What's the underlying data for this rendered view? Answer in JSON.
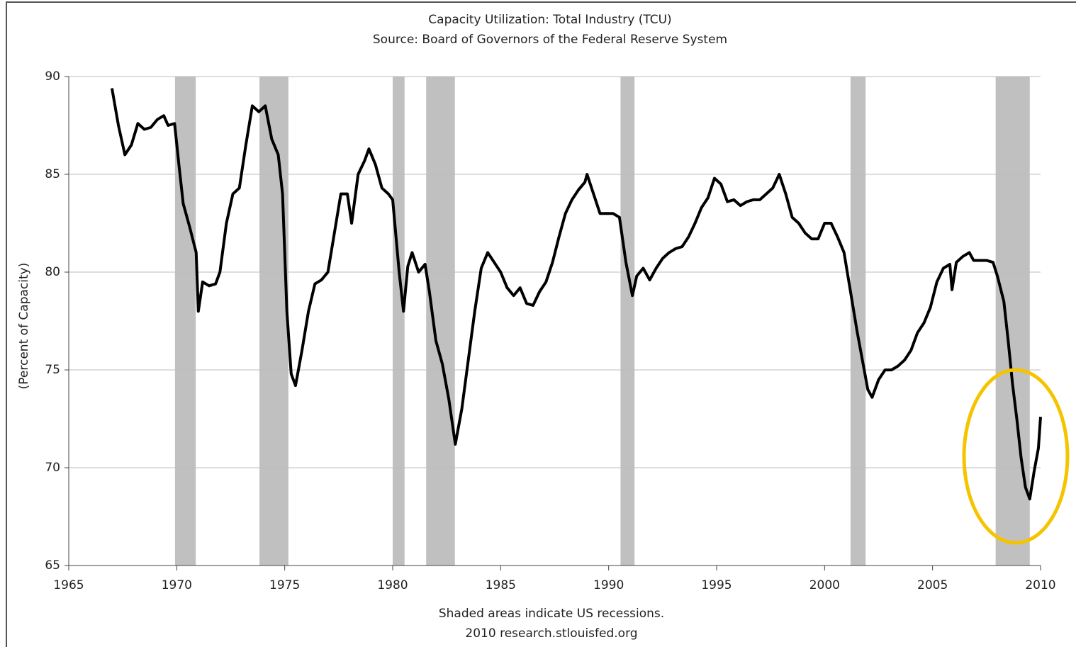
{
  "chart_data": {
    "type": "line",
    "title": "Capacity Utilization: Total Industry (TCU)",
    "subtitle": "Source: Board of Governors of the Federal Reserve System",
    "y_label": "(Percent of Capacity)",
    "footer": [
      "Shaded areas indicate US recessions.",
      "2010 research.stlouisfed.org"
    ],
    "xlim": [
      1965,
      2010
    ],
    "xticks": [
      1965,
      1970,
      1975,
      1980,
      1985,
      1990,
      1995,
      2000,
      2005,
      2010
    ],
    "ylim": [
      65,
      90
    ],
    "yticks": [
      65,
      70,
      75,
      80,
      85,
      90
    ],
    "grid": true,
    "recession_color": "#c0c0c0",
    "recessions": [
      [
        1969.92,
        1970.88
      ],
      [
        1973.83,
        1975.17
      ],
      [
        1980.0,
        1980.55
      ],
      [
        1981.55,
        1982.88
      ],
      [
        1990.55,
        1991.2
      ],
      [
        2001.2,
        2001.9
      ],
      [
        2007.92,
        2009.5
      ]
    ],
    "x": [
      1967.0,
      1967.3,
      1967.6,
      1967.9,
      1968.2,
      1968.5,
      1968.8,
      1969.1,
      1969.4,
      1969.6,
      1969.9,
      1970.1,
      1970.3,
      1970.6,
      1970.9,
      1971.0,
      1971.2,
      1971.5,
      1971.8,
      1972.0,
      1972.3,
      1972.6,
      1972.9,
      1973.2,
      1973.5,
      1973.8,
      1974.1,
      1974.4,
      1974.7,
      1974.9,
      1975.1,
      1975.3,
      1975.5,
      1975.8,
      1976.1,
      1976.4,
      1976.7,
      1977.0,
      1977.3,
      1977.6,
      1977.9,
      1978.1,
      1978.4,
      1978.7,
      1978.9,
      1979.2,
      1979.5,
      1979.8,
      1980.0,
      1980.3,
      1980.5,
      1980.7,
      1980.9,
      1981.2,
      1981.5,
      1981.7,
      1982.0,
      1982.3,
      1982.6,
      1982.9,
      1983.2,
      1983.5,
      1983.8,
      1984.1,
      1984.4,
      1984.7,
      1985.0,
      1985.3,
      1985.6,
      1985.9,
      1986.2,
      1986.5,
      1986.8,
      1987.1,
      1987.4,
      1987.7,
      1988.0,
      1988.3,
      1988.6,
      1988.9,
      1989.0,
      1989.3,
      1989.6,
      1989.9,
      1990.2,
      1990.5,
      1990.8,
      1991.1,
      1991.3,
      1991.6,
      1991.9,
      1992.2,
      1992.5,
      1992.8,
      1993.1,
      1993.4,
      1993.7,
      1994.0,
      1994.3,
      1994.6,
      1994.9,
      1995.2,
      1995.5,
      1995.8,
      1996.1,
      1996.4,
      1996.7,
      1997.0,
      1997.3,
      1997.6,
      1997.9,
      1998.2,
      1998.5,
      1998.8,
      1999.1,
      1999.4,
      1999.7,
      2000.0,
      2000.3,
      2000.6,
      2000.9,
      2001.2,
      2001.5,
      2001.8,
      2002.0,
      2002.2,
      2002.5,
      2002.8,
      2003.1,
      2003.4,
      2003.7,
      2004.0,
      2004.3,
      2004.6,
      2004.9,
      2005.2,
      2005.5,
      2005.8,
      2005.9,
      2006.1,
      2006.4,
      2006.7,
      2006.9,
      2007.2,
      2007.5,
      2007.8,
      2008.0,
      2008.3,
      2008.5,
      2008.7,
      2008.9,
      2009.1,
      2009.3,
      2009.5,
      2009.7,
      2009.9,
      2010.0
    ],
    "series": [
      {
        "name": "TCU",
        "color": "#000000",
        "values": [
          89.4,
          87.5,
          86.0,
          86.5,
          87.6,
          87.3,
          87.4,
          87.8,
          88.0,
          87.5,
          87.6,
          85.5,
          83.5,
          82.3,
          81.0,
          78.0,
          79.5,
          79.3,
          79.4,
          80.0,
          82.5,
          84.0,
          84.3,
          86.5,
          88.5,
          88.2,
          88.5,
          86.8,
          86.0,
          84.0,
          78.0,
          74.8,
          74.2,
          76.0,
          78.0,
          79.4,
          79.6,
          80.0,
          82.0,
          84.0,
          84.0,
          82.5,
          85.0,
          85.7,
          86.3,
          85.5,
          84.3,
          84.0,
          83.7,
          80.0,
          78.0,
          80.3,
          81.0,
          80.0,
          80.4,
          79.0,
          76.5,
          75.3,
          73.5,
          71.2,
          73.0,
          75.5,
          78.0,
          80.2,
          81.0,
          80.5,
          80.0,
          79.2,
          78.8,
          79.2,
          78.4,
          78.3,
          79.0,
          79.5,
          80.5,
          81.8,
          83.0,
          83.7,
          84.2,
          84.6,
          85.0,
          84.0,
          83.0,
          83.0,
          83.0,
          82.8,
          80.5,
          78.8,
          79.8,
          80.2,
          79.6,
          80.2,
          80.7,
          81.0,
          81.2,
          81.3,
          81.8,
          82.5,
          83.3,
          83.8,
          84.8,
          84.5,
          83.6,
          83.7,
          83.4,
          83.6,
          83.7,
          83.7,
          84.0,
          84.3,
          85.0,
          84.0,
          82.8,
          82.5,
          82.0,
          81.7,
          81.7,
          82.5,
          82.5,
          81.8,
          81.0,
          79.0,
          77.0,
          75.2,
          74.0,
          73.6,
          74.5,
          75.0,
          75.0,
          75.2,
          75.5,
          76.0,
          76.9,
          77.4,
          78.2,
          79.5,
          80.2,
          80.4,
          79.1,
          80.5,
          80.8,
          81.0,
          80.6,
          80.6,
          80.6,
          80.5,
          79.8,
          78.5,
          76.5,
          74.3,
          72.5,
          70.5,
          69.0,
          68.4,
          69.8,
          71.0,
          72.6
        ]
      }
    ]
  }
}
